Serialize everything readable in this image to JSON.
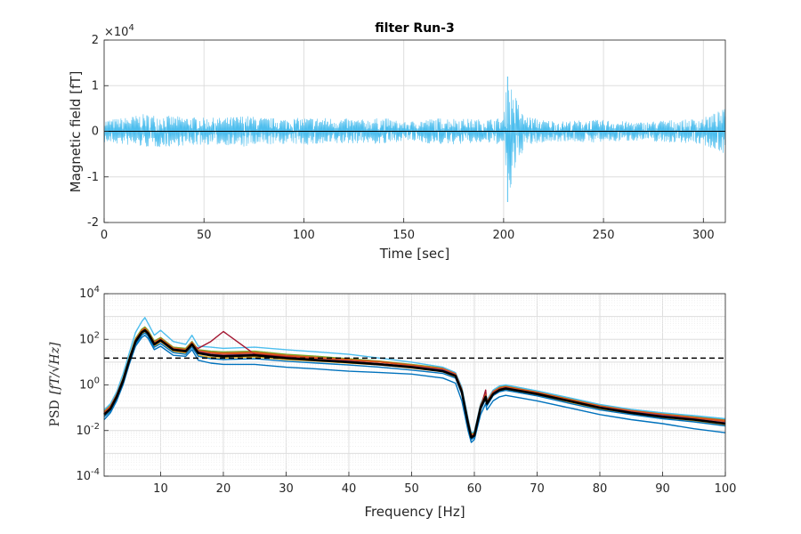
{
  "chart_data": [
    {
      "type": "line",
      "title": "filter Run-3",
      "xlabel": "Time [sec]",
      "ylabel": "Magnetic field [fT]",
      "y_exponent_label": "×10",
      "y_exponent_power": "4",
      "xlim": [
        0,
        311
      ],
      "ylim": [
        -2,
        2
      ],
      "y_scale_factor": 10000,
      "x_ticks": [
        0,
        50,
        100,
        150,
        200,
        250,
        300
      ],
      "y_ticks": [
        -2,
        -1,
        0,
        1,
        2
      ],
      "grid": true,
      "series": [
        {
          "color": "#4DBEEE",
          "description": "noise envelope",
          "x": [
            0,
            10,
            20,
            30,
            40,
            50,
            60,
            70,
            80,
            90,
            100,
            110,
            120,
            130,
            140,
            150,
            160,
            170,
            180,
            190,
            200,
            202,
            210,
            220,
            230,
            240,
            250,
            260,
            270,
            280,
            290,
            300,
            311
          ],
          "upper": [
            0.25,
            0.3,
            0.38,
            0.35,
            0.32,
            0.3,
            0.3,
            0.35,
            0.3,
            0.28,
            0.3,
            0.3,
            0.28,
            0.26,
            0.3,
            0.2,
            0.26,
            0.3,
            0.28,
            0.26,
            0.3,
            1.2,
            0.35,
            0.25,
            0.22,
            0.25,
            0.25,
            0.22,
            0.2,
            0.25,
            0.25,
            0.3,
            0.5
          ],
          "lower": [
            -0.25,
            -0.3,
            -0.35,
            -0.35,
            -0.32,
            -0.3,
            -0.3,
            -0.35,
            -0.3,
            -0.28,
            -0.3,
            -0.3,
            -0.28,
            -0.26,
            -0.3,
            -0.2,
            -0.26,
            -0.3,
            -0.28,
            -0.26,
            -0.3,
            -1.55,
            -0.35,
            -0.25,
            -0.22,
            -0.25,
            -0.25,
            -0.22,
            -0.2,
            -0.25,
            -0.25,
            -0.3,
            -0.5
          ]
        },
        {
          "color": "#000000",
          "description": "mean",
          "x": [
            0,
            311
          ],
          "values": [
            0,
            0
          ]
        }
      ]
    },
    {
      "type": "line",
      "xlabel": "Frequency [Hz]",
      "ylabel": "PSD",
      "ylabel_math": "[fT/√Hz]",
      "xlim": [
        1,
        100
      ],
      "ylim": [
        0.0001,
        10000
      ],
      "y_scale": "log",
      "x_ticks": [
        10,
        20,
        30,
        40,
        50,
        60,
        70,
        80,
        90,
        100
      ],
      "y_tick_powers": [
        -4,
        -2,
        0,
        2,
        4
      ],
      "y_tick_base": "10",
      "grid": true,
      "reference_line": {
        "value": 15,
        "style": "dashed",
        "color": "#000000"
      },
      "frequencies": [
        1,
        2,
        3,
        4,
        5,
        6,
        7,
        7.5,
        8,
        9,
        10,
        12,
        14,
        15,
        16,
        18,
        20,
        25,
        30,
        35,
        40,
        45,
        50,
        55,
        57,
        58,
        59,
        59.5,
        60,
        61,
        61.8,
        62,
        63,
        64,
        65,
        70,
        75,
        80,
        85,
        90,
        95,
        100
      ],
      "series": [
        {
          "color": "#000000",
          "description": "mean",
          "values": [
            0.05,
            0.09,
            0.3,
            1.5,
            12,
            80,
            200,
            250,
            180,
            60,
            90,
            35,
            30,
            60,
            25,
            20,
            18,
            20,
            15,
            12,
            10,
            8,
            6,
            4,
            2.5,
            0.5,
            0.02,
            0.005,
            0.006,
            0.1,
            0.3,
            0.15,
            0.4,
            0.6,
            0.7,
            0.4,
            0.2,
            0.1,
            0.06,
            0.04,
            0.03,
            0.02
          ]
        },
        {
          "color": "#0072BD",
          "description": "channel",
          "values": [
            0.03,
            0.06,
            0.2,
            1.0,
            8,
            50,
            120,
            150,
            110,
            35,
            50,
            20,
            18,
            35,
            12,
            9,
            8,
            8,
            6,
            5,
            4,
            3.5,
            3,
            2,
            1.2,
            0.2,
            0.01,
            0.003,
            0.004,
            0.05,
            0.15,
            0.08,
            0.2,
            0.3,
            0.35,
            0.2,
            0.1,
            0.05,
            0.03,
            0.02,
            0.012,
            0.008
          ]
        },
        {
          "color": "#D95319",
          "description": "channel",
          "values": [
            0.06,
            0.11,
            0.35,
            1.8,
            14,
            90,
            230,
            280,
            200,
            70,
            100,
            40,
            35,
            70,
            30,
            25,
            22,
            25,
            18,
            15,
            12,
            10,
            7,
            5,
            3,
            0.6,
            0.025,
            0.006,
            0.007,
            0.12,
            0.35,
            0.18,
            0.5,
            0.7,
            0.8,
            0.45,
            0.22,
            0.12,
            0.07,
            0.05,
            0.035,
            0.025
          ]
        },
        {
          "color": "#EDB120",
          "description": "channel",
          "values": [
            0.045,
            0.08,
            0.25,
            1.3,
            10,
            70,
            170,
            220,
            160,
            50,
            80,
            30,
            25,
            50,
            20,
            16,
            15,
            17,
            13,
            11,
            9,
            7.5,
            5.5,
            3.8,
            2.2,
            0.45,
            0.018,
            0.0045,
            0.0055,
            0.09,
            0.28,
            0.13,
            0.38,
            0.55,
            0.65,
            0.37,
            0.18,
            0.09,
            0.055,
            0.036,
            0.027,
            0.018
          ]
        },
        {
          "color": "#7E2F8E",
          "description": "channel",
          "values": [
            0.055,
            0.1,
            0.32,
            1.6,
            13,
            85,
            210,
            260,
            190,
            65,
            95,
            38,
            32,
            65,
            28,
            22,
            20,
            22,
            16,
            13,
            11,
            8.5,
            6.5,
            4.5,
            2.8,
            0.55,
            0.022,
            0.0055,
            0.0065,
            0.11,
            0.32,
            0.16,
            0.45,
            0.65,
            0.75,
            0.42,
            0.21,
            0.11,
            0.065,
            0.045,
            0.032,
            0.022
          ]
        },
        {
          "color": "#77AC30",
          "description": "channel",
          "values": [
            0.07,
            0.13,
            0.4,
            2.0,
            16,
            110,
            280,
            350,
            250,
            85,
            120,
            45,
            40,
            80,
            35,
            30,
            28,
            30,
            22,
            18,
            14,
            11,
            8,
            5.5,
            3.3,
            0.7,
            0.03,
            0.007,
            0.008,
            0.14,
            0.4,
            0.2,
            0.55,
            0.8,
            0.9,
            0.5,
            0.26,
            0.13,
            0.08,
            0.055,
            0.04,
            0.03
          ]
        },
        {
          "color": "#4DBEEE",
          "description": "channel",
          "values": [
            0.08,
            0.15,
            0.5,
            3.0,
            25,
            200,
            600,
            900,
            500,
            150,
            250,
            80,
            60,
            150,
            50,
            45,
            40,
            45,
            35,
            28,
            22,
            15,
            10,
            6,
            3.5,
            0.8,
            0.035,
            0.008,
            0.009,
            0.15,
            0.45,
            0.22,
            0.6,
            0.9,
            1.0,
            0.55,
            0.28,
            0.14,
            0.085,
            0.06,
            0.045,
            0.033
          ]
        },
        {
          "color": "#A2142F",
          "description": "channel",
          "values": [
            0.05,
            0.09,
            0.3,
            1.4,
            11,
            75,
            190,
            240,
            170,
            60,
            85,
            33,
            28,
            55,
            40,
            80,
            220,
            22,
            17,
            13,
            10.5,
            8.5,
            6.2,
            4.2,
            2.6,
            0.5,
            0.02,
            0.005,
            0.006,
            0.1,
            0.6,
            0.15,
            0.42,
            0.62,
            0.72,
            0.41,
            0.2,
            0.1,
            0.06,
            0.042,
            0.031,
            0.021
          ]
        },
        {
          "color": "#0072BD",
          "description": "channel",
          "values": [
            0.04,
            0.07,
            0.22,
            1.1,
            9,
            60,
            150,
            190,
            140,
            45,
            65,
            26,
            22,
            45,
            18,
            14,
            13,
            14,
            11,
            9,
            7.5,
            6,
            4.5,
            3.2,
            2,
            0.4,
            0.016,
            0.004,
            0.005,
            0.08,
            0.24,
            0.12,
            0.34,
            0.5,
            0.58,
            0.33,
            0.16,
            0.08,
            0.05,
            0.033,
            0.024,
            0.016
          ]
        },
        {
          "color": "#D95319",
          "description": "channel",
          "values": [
            0.065,
            0.12,
            0.38,
            1.9,
            15,
            100,
            250,
            310,
            220,
            75,
            110,
            42,
            36,
            75,
            32,
            27,
            25,
            27,
            20,
            16,
            13,
            10.5,
            7.5,
            5.2,
            3.1,
            0.65,
            0.028,
            0.0065,
            0.0075,
            0.13,
            0.38,
            0.19,
            0.52,
            0.75,
            0.85,
            0.48,
            0.24,
            0.12,
            0.075,
            0.052,
            0.038,
            0.028
          ]
        }
      ]
    }
  ]
}
